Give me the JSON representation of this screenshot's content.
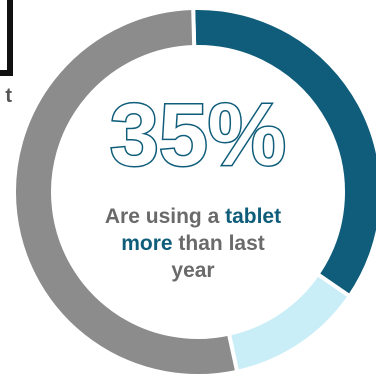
{
  "chart_data": {
    "type": "pie",
    "variant": "donut",
    "slices": [
      {
        "label": "tablet more",
        "value": 35,
        "color": "#0f5d7a"
      },
      {
        "label": "",
        "value": 12,
        "color": "#c9eef8"
      },
      {
        "label": "",
        "value": 53,
        "color": "#8c8c8c"
      }
    ],
    "center_value": "35%"
  },
  "caption": {
    "part1": "Are using a ",
    "accent1": "tablet",
    "accent2": "more",
    "part2": " than last",
    "part3": "year"
  },
  "corner": {
    "glyph": "t"
  },
  "colors": {
    "accent": "#0f5d7a",
    "caption_text": "#6a6a6a",
    "background": "#ffffff"
  }
}
